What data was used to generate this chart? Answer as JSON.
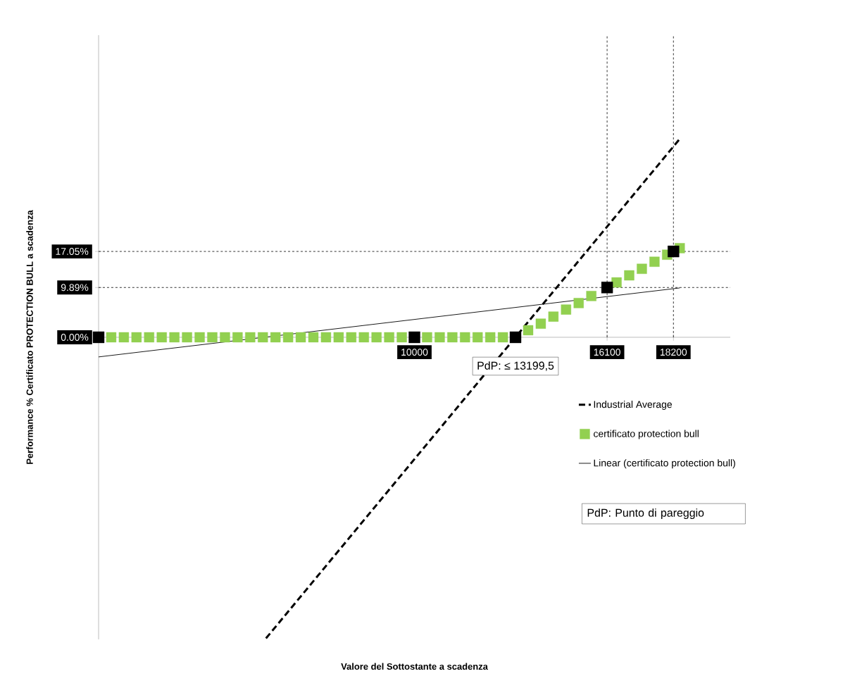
{
  "chart_data": {
    "type": "scatter",
    "xlabel": "Valore del Sottostante a scadenza",
    "ylabel": "Performance % Certificato PROTECTION  BULL a scadenza",
    "xlim": [
      0,
      20000
    ],
    "ylim": [
      -60,
      60
    ],
    "xticks": [
      10000,
      16100,
      18200
    ],
    "yticks": [
      {
        "value": 0,
        "label": "0.00%"
      },
      {
        "value": 9.89,
        "label": "9.89%"
      },
      {
        "value": 17.05,
        "label": "17.05%"
      }
    ],
    "legend": "right",
    "series": [
      {
        "name": "Industrial Average",
        "type": "line",
        "line_style": "dashed",
        "marker": "none",
        "color": "#000000",
        "x": [
          5300,
          18400
        ],
        "values": [
          -59.8,
          39.4
        ]
      },
      {
        "name": "certificato protection bull",
        "marker": "square",
        "color": "#92d050",
        "x": [
          400,
          800,
          1200,
          1600,
          2000,
          2400,
          2800,
          3200,
          3600,
          4000,
          4400,
          4800,
          5200,
          5600,
          6000,
          6400,
          6800,
          7200,
          7600,
          8000,
          8400,
          8800,
          9200,
          9600,
          10400,
          10800,
          11200,
          11600,
          12000,
          12400,
          12800,
          13600,
          14000,
          14400,
          14800,
          15200,
          15600,
          16000,
          16400,
          16800,
          17200,
          17600,
          18000,
          18400
        ],
        "values": [
          0,
          0,
          0,
          0,
          0,
          0,
          0,
          0,
          0,
          0,
          0,
          0,
          0,
          0,
          0,
          0,
          0,
          0,
          0,
          0,
          0,
          0,
          0,
          0,
          0,
          0,
          0,
          0,
          0,
          0,
          0,
          1.4,
          2.7,
          4.1,
          5.5,
          6.8,
          8.2,
          null,
          10.9,
          12.3,
          13.6,
          15.0,
          16.4,
          17.7
        ]
      },
      {
        "name": "Linear (certificato protection bull)",
        "type": "line",
        "line_style": "solid",
        "marker": "none",
        "color": "#000000",
        "x": [
          0,
          18400
        ],
        "values": [
          -3.9,
          9.8
        ]
      },
      {
        "marker": "square",
        "color": "#000000",
        "x": [
          0,
          10000,
          13199.5,
          16100,
          18200
        ],
        "values": [
          0,
          0,
          0,
          9.89,
          17.05
        ]
      }
    ],
    "ref_lines": [
      {
        "axis": "y",
        "value": 17.05,
        "line_style": "dashed",
        "color": "#000000"
      },
      {
        "axis": "y",
        "value": 9.89,
        "line_style": "dashed",
        "color": "#000000"
      },
      {
        "axis": "x",
        "value": 16100,
        "line_style": "dashed",
        "color": "#000000"
      },
      {
        "axis": "x",
        "value": 18200,
        "line_style": "dashed",
        "color": "#000000"
      }
    ],
    "annotations": [
      {
        "text": "PdP: ≤ 13199,5",
        "x": 13199.5,
        "y": 0
      },
      "PdP: Punto di pareggio"
    ]
  }
}
